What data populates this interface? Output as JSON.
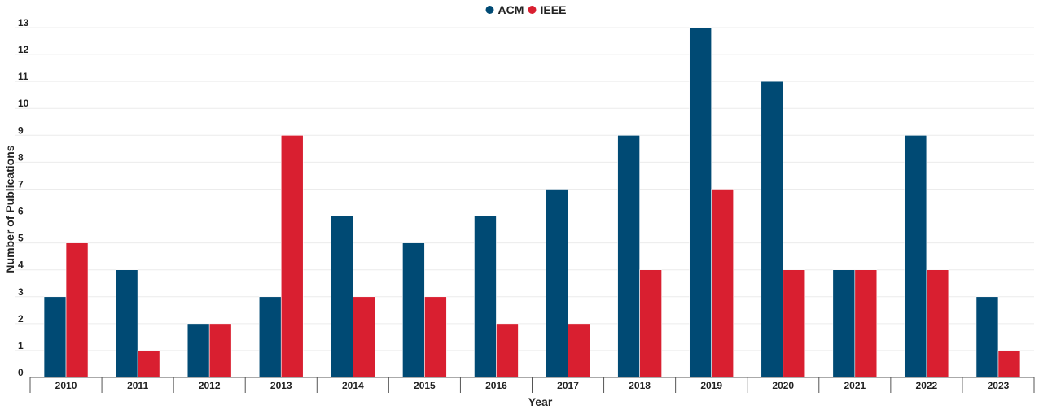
{
  "chart_data": {
    "type": "bar",
    "title": "",
    "xlabel": "Year",
    "ylabel": "Number of Publications",
    "categories": [
      "2010",
      "2011",
      "2012",
      "2013",
      "2014",
      "2015",
      "2016",
      "2017",
      "2018",
      "2019",
      "2020",
      "2021",
      "2022",
      "2023"
    ],
    "series": [
      {
        "name": "ACM",
        "color": "#004a74",
        "values": [
          3,
          4,
          2,
          3,
          6,
          5,
          6,
          7,
          9,
          13,
          11,
          4,
          9,
          3
        ]
      },
      {
        "name": "IEEE",
        "color": "#d91f30",
        "values": [
          5,
          1,
          2,
          9,
          3,
          3,
          2,
          2,
          4,
          7,
          4,
          4,
          4,
          1
        ]
      }
    ],
    "ylim": [
      0,
      13
    ],
    "yticks": [
      0,
      1,
      2,
      3,
      4,
      5,
      6,
      7,
      8,
      9,
      10,
      11,
      12,
      13
    ],
    "grid": true,
    "legend_position": "top-center"
  }
}
